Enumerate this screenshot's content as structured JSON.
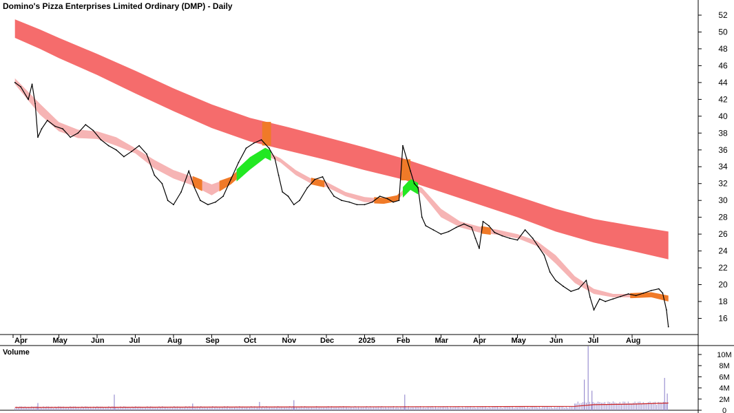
{
  "chart_data": {
    "type": "line",
    "title": "Domino's Pizza Enterprises Limited Ordinary (DMP) - Daily",
    "price_axis": {
      "ticks": [
        16,
        18,
        20,
        22,
        24,
        26,
        28,
        30,
        32,
        34,
        36,
        38,
        40,
        42,
        44,
        46,
        48,
        50,
        52
      ],
      "range": [
        14.5,
        53.5
      ]
    },
    "month_labels": [
      {
        "label": "Apr",
        "m": 0
      },
      {
        "label": "May",
        "m": 1
      },
      {
        "label": "Jun",
        "m": 2
      },
      {
        "label": "Jul",
        "m": 3
      },
      {
        "label": "Aug",
        "m": 4
      },
      {
        "label": "Sep",
        "m": 5
      },
      {
        "label": "Oct",
        "m": 6
      },
      {
        "label": "Nov",
        "m": 7
      },
      {
        "label": "Dec",
        "m": 8
      },
      {
        "label": "2025",
        "m": 9
      },
      {
        "label": "Feb",
        "m": 10
      },
      {
        "label": "Mar",
        "m": 11
      },
      {
        "label": "Apr",
        "m": 12
      },
      {
        "label": "May",
        "m": 13
      },
      {
        "label": "Jun",
        "m": 14
      },
      {
        "label": "Jul",
        "m": 15
      },
      {
        "label": "Aug",
        "m": 16
      }
    ],
    "price_series": [
      [
        -0.15,
        44.0
      ],
      [
        0,
        43.5
      ],
      [
        0.2,
        42.0
      ],
      [
        0.3,
        43.8
      ],
      [
        0.38,
        41.5
      ],
      [
        0.45,
        37.5
      ],
      [
        0.55,
        38.5
      ],
      [
        0.7,
        39.5
      ],
      [
        0.9,
        38.8
      ],
      [
        1.1,
        38.5
      ],
      [
        1.3,
        37.5
      ],
      [
        1.5,
        38.0
      ],
      [
        1.7,
        39.0
      ],
      [
        1.9,
        38.3
      ],
      [
        2.1,
        37.2
      ],
      [
        2.3,
        36.5
      ],
      [
        2.5,
        36.0
      ],
      [
        2.7,
        35.2
      ],
      [
        2.9,
        35.8
      ],
      [
        3.1,
        36.5
      ],
      [
        3.3,
        35.5
      ],
      [
        3.5,
        33.0
      ],
      [
        3.7,
        32.0
      ],
      [
        3.85,
        30.0
      ],
      [
        4.0,
        29.5
      ],
      [
        4.2,
        31.0
      ],
      [
        4.4,
        33.5
      ],
      [
        4.55,
        31.5
      ],
      [
        4.7,
        30.0
      ],
      [
        4.9,
        29.5
      ],
      [
        5.1,
        29.8
      ],
      [
        5.3,
        30.5
      ],
      [
        5.5,
        32.5
      ],
      [
        5.7,
        34.5
      ],
      [
        5.9,
        36.2
      ],
      [
        6.1,
        36.8
      ],
      [
        6.3,
        37.2
      ],
      [
        6.5,
        36.2
      ],
      [
        6.65,
        35.0
      ],
      [
        6.75,
        33.0
      ],
      [
        6.85,
        31.0
      ],
      [
        7.0,
        30.5
      ],
      [
        7.15,
        29.5
      ],
      [
        7.3,
        30.0
      ],
      [
        7.5,
        31.5
      ],
      [
        7.7,
        32.5
      ],
      [
        7.9,
        32.8
      ],
      [
        8.05,
        31.5
      ],
      [
        8.2,
        30.5
      ],
      [
        8.4,
        30.0
      ],
      [
        8.6,
        29.8
      ],
      [
        8.8,
        29.5
      ],
      [
        9.0,
        29.5
      ],
      [
        9.2,
        29.8
      ],
      [
        9.4,
        30.5
      ],
      [
        9.6,
        30.2
      ],
      [
        9.75,
        29.8
      ],
      [
        9.9,
        30.0
      ],
      [
        10.0,
        36.5
      ],
      [
        10.1,
        35.0
      ],
      [
        10.2,
        33.5
      ],
      [
        10.3,
        32.0
      ],
      [
        10.4,
        31.5
      ],
      [
        10.5,
        28.0
      ],
      [
        10.6,
        27.0
      ],
      [
        10.8,
        26.5
      ],
      [
        11.0,
        26.0
      ],
      [
        11.2,
        26.3
      ],
      [
        11.4,
        26.8
      ],
      [
        11.6,
        27.2
      ],
      [
        11.8,
        26.8
      ],
      [
        11.9,
        25.5
      ],
      [
        12.0,
        24.3
      ],
      [
        12.1,
        27.5
      ],
      [
        12.25,
        27.0
      ],
      [
        12.4,
        26.2
      ],
      [
        12.6,
        25.8
      ],
      [
        12.8,
        25.5
      ],
      [
        13.0,
        25.3
      ],
      [
        13.2,
        26.5
      ],
      [
        13.4,
        25.5
      ],
      [
        13.55,
        24.5
      ],
      [
        13.7,
        23.5
      ],
      [
        13.85,
        21.5
      ],
      [
        14.0,
        20.5
      ],
      [
        14.2,
        19.8
      ],
      [
        14.4,
        19.2
      ],
      [
        14.6,
        19.5
      ],
      [
        14.8,
        20.5
      ],
      [
        14.9,
        18.5
      ],
      [
        15.0,
        17.0
      ],
      [
        15.15,
        18.3
      ],
      [
        15.3,
        18.0
      ],
      [
        15.5,
        18.3
      ],
      [
        15.7,
        18.6
      ],
      [
        15.9,
        18.9
      ],
      [
        16.1,
        18.7
      ],
      [
        16.3,
        19.0
      ],
      [
        16.5,
        19.3
      ],
      [
        16.7,
        19.5
      ],
      [
        16.8,
        19.0
      ],
      [
        16.9,
        17.0
      ],
      [
        16.95,
        15.0
      ]
    ],
    "short_band_series": [
      [
        -0.15,
        44.5,
        43.8
      ],
      [
        0.5,
        41.5,
        40.2
      ],
      [
        1.0,
        39.3,
        38.2
      ],
      [
        1.5,
        38.4,
        37.4
      ],
      [
        2.0,
        38.2,
        37.3
      ],
      [
        2.5,
        37.5,
        36.5
      ],
      [
        3.0,
        36.2,
        35.6
      ],
      [
        3.5,
        34.8,
        33.8
      ],
      [
        4.0,
        33.6,
        32.6
      ],
      [
        4.5,
        32.8,
        31.8
      ],
      [
        5.0,
        31.9,
        30.6
      ],
      [
        5.5,
        32.7,
        32.0
      ],
      [
        6.0,
        34.8,
        34.0
      ],
      [
        6.4,
        35.9,
        35.4
      ],
      [
        6.8,
        35.0,
        34.5
      ],
      [
        7.2,
        33.6,
        33.0
      ],
      [
        7.6,
        32.6,
        32.0
      ],
      [
        8.0,
        32.2,
        31.6
      ],
      [
        8.5,
        31.0,
        30.5
      ],
      [
        9.0,
        30.4,
        29.8
      ],
      [
        9.5,
        30.2,
        29.7
      ],
      [
        9.85,
        30.5,
        30.0
      ],
      [
        10.2,
        32.2,
        31.6
      ],
      [
        10.5,
        31.5,
        30.8
      ],
      [
        11.0,
        29.0,
        28.0
      ],
      [
        11.5,
        27.5,
        26.8
      ],
      [
        12.0,
        26.9,
        26.2
      ],
      [
        12.5,
        26.5,
        25.9
      ],
      [
        13.0,
        26.0,
        25.5
      ],
      [
        13.5,
        25.2,
        24.6
      ],
      [
        14.0,
        23.5,
        22.5
      ],
      [
        14.5,
        21.0,
        20.2
      ],
      [
        15.0,
        19.5,
        18.9
      ],
      [
        15.5,
        18.9,
        18.5
      ],
      [
        16.0,
        18.9,
        18.5
      ],
      [
        16.5,
        19.0,
        18.6
      ],
      [
        16.95,
        18.6,
        18.1
      ]
    ],
    "long_band_series": [
      [
        -0.15,
        51.5,
        49.3
      ],
      [
        0.5,
        50.3,
        48.0
      ],
      [
        1.0,
        49.3,
        46.9
      ],
      [
        2.0,
        47.4,
        44.9
      ],
      [
        3.0,
        45.4,
        42.7
      ],
      [
        4.0,
        43.3,
        40.6
      ],
      [
        5.0,
        41.4,
        38.6
      ],
      [
        6.0,
        39.8,
        37.0
      ],
      [
        7.0,
        38.7,
        35.9
      ],
      [
        8.0,
        37.5,
        34.8
      ],
      [
        9.0,
        36.3,
        33.6
      ],
      [
        10.0,
        35.0,
        32.5
      ],
      [
        11.0,
        33.5,
        31.0
      ],
      [
        12.0,
        32.0,
        29.5
      ],
      [
        13.0,
        30.5,
        28.0
      ],
      [
        14.0,
        29.0,
        26.3
      ],
      [
        15.0,
        27.8,
        25.0
      ],
      [
        16.0,
        27.0,
        24.0
      ],
      [
        16.95,
        26.3,
        23.0
      ]
    ],
    "highlights": [
      {
        "kind": "green",
        "start": 5.65,
        "end": 6.55
      },
      {
        "kind": "green",
        "start": 10.0,
        "end": 10.4
      },
      {
        "kind": "orange",
        "start": 4.5,
        "end": 4.75
      },
      {
        "kind": "orange",
        "start": 5.2,
        "end": 5.65
      },
      {
        "kind": "orange",
        "start": 7.6,
        "end": 7.95
      },
      {
        "kind": "orange",
        "start": 9.25,
        "end": 9.9
      },
      {
        "kind": "orange",
        "start": 12.05,
        "end": 12.3
      },
      {
        "kind": "orange",
        "start": 15.95,
        "end": 16.95
      },
      {
        "kind": "orange_column",
        "start": 6.32,
        "end": 6.55
      },
      {
        "kind": "orange_column",
        "start": 9.95,
        "end": 10.2
      }
    ],
    "volume": {
      "label": "Volume",
      "ticks": [
        {
          "label": "0",
          "v": 0
        },
        {
          "label": "2M",
          "v": 2
        },
        {
          "label": "4M",
          "v": 4
        },
        {
          "label": "6M",
          "v": 6
        },
        {
          "label": "8M",
          "v": 8
        },
        {
          "label": "10M",
          "v": 10
        }
      ],
      "spikes": [
        [
          0.45,
          1.3
        ],
        [
          2.45,
          2.8
        ],
        [
          4.5,
          1.2
        ],
        [
          6.25,
          1.5
        ],
        [
          7.15,
          1.8
        ],
        [
          10.05,
          2.8
        ],
        [
          14.5,
          1.2
        ],
        [
          14.75,
          5.5
        ],
        [
          14.85,
          11.5
        ],
        [
          14.95,
          3.5
        ],
        [
          16.85,
          5.8
        ],
        [
          16.92,
          3.0
        ]
      ],
      "average_series": [
        [
          -0.15,
          0.5
        ],
        [
          4,
          0.55
        ],
        [
          8,
          0.6
        ],
        [
          12,
          0.65
        ],
        [
          14.5,
          0.7
        ],
        [
          15.0,
          1.0
        ],
        [
          16.0,
          1.1
        ],
        [
          16.95,
          1.3
        ]
      ]
    }
  },
  "colors": {
    "long_band": "#f56c6c",
    "short_band": "#f6b4b4",
    "highlight_orange": "#f07a28",
    "highlight_green": "#22e822",
    "volume_bar": "#9a8fd0",
    "volume_avg": "#cc2222",
    "volume_label": "#8a80c8"
  }
}
